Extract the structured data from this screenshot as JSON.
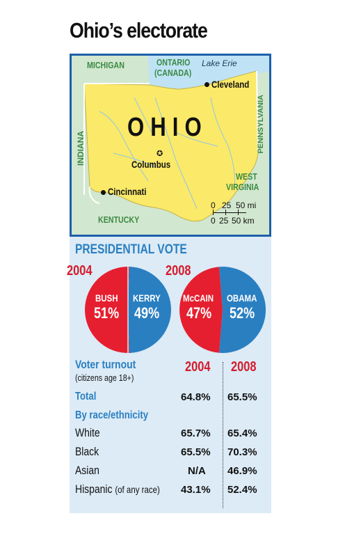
{
  "title": "Ohio’s electorate",
  "map": {
    "state_label": "OHIO",
    "neighbors": {
      "michigan": "MICHIGAN",
      "ontario": "ONTARIO",
      "canada": "(CANADA)",
      "lake": "Lake Erie",
      "indiana": "INDIANA",
      "pennsylvania": "PENNSYLVANIA",
      "west": "WEST",
      "virginia": "VIRGINIA",
      "kentucky": "KENTUCKY"
    },
    "cities": {
      "cleveland": "Cleveland",
      "columbus": "Columbus",
      "cincinnati": "Cincinnati"
    },
    "scale": {
      "mi": [
        "0",
        "25",
        "50 mi"
      ],
      "km": [
        "0",
        "25",
        "50 km"
      ]
    },
    "colors": {
      "state": "#fbe969",
      "land": "#d2e7cf",
      "water": "#bfe3f5",
      "border": "#1e5fa8"
    }
  },
  "presidential": {
    "heading": "PRESIDENTIAL VOTE",
    "colors": {
      "rep": "#e51f2f",
      "dem": "#2a7fc1"
    },
    "elections": [
      {
        "year": "2004",
        "rep": {
          "name": "BUSH",
          "pct": "51%",
          "value": 51
        },
        "dem": {
          "name": "KERRY",
          "pct": "49%",
          "value": 49
        }
      },
      {
        "year": "2008",
        "rep": {
          "name": "McCAIN",
          "pct": "47%",
          "value": 47
        },
        "dem": {
          "name": "OBAMA",
          "pct": "52%",
          "value": 52
        }
      }
    ]
  },
  "turnout": {
    "heading": "Voter turnout",
    "subheading": "(citizens age 18+)",
    "col_2004": "2004",
    "col_2008": "2008",
    "total": {
      "label": "Total",
      "v2004": "64.8%",
      "v2008": "65.5%"
    },
    "race_heading": "By race/ethnicity",
    "rows": [
      {
        "label": "White",
        "v2004": "65.7%",
        "v2008": "65.4%"
      },
      {
        "label": "Black",
        "v2004": "65.5%",
        "v2008": "70.3%"
      },
      {
        "label": "Asian",
        "v2004": "N/A",
        "v2008": "46.9%"
      },
      {
        "label": "Hispanic",
        "note": "(of any race)",
        "v2004": "43.1%",
        "v2008": "52.4%"
      }
    ]
  }
}
